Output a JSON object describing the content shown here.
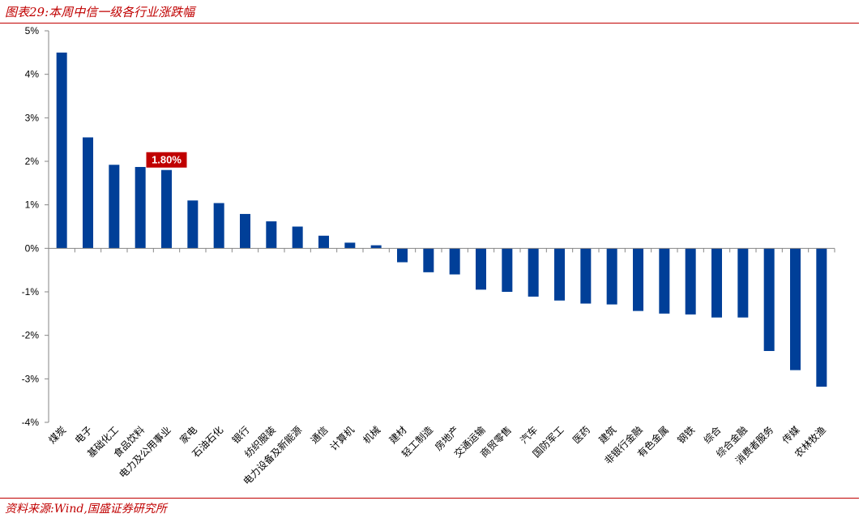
{
  "title": "图表29:本周中信一级各行业涨跌幅",
  "source": "资料来源:Wind,国盛证券研究所",
  "colors": {
    "bar": "#003f98",
    "accent": "#c00000",
    "axis": "#868686"
  },
  "chart_data": {
    "type": "bar",
    "title": "",
    "xlabel": "",
    "ylabel": "",
    "ylim": [
      -4,
      5
    ],
    "yticks": [
      5,
      4,
      3,
      2,
      1,
      0,
      -1,
      -2,
      -3,
      -4
    ],
    "ytick_labels": [
      "5%",
      "4%",
      "3%",
      "2%",
      "1%",
      "0%",
      "-1%",
      "-2%",
      "-3%",
      "-4%"
    ],
    "grid": false,
    "legend": "none",
    "categories": [
      "煤炭",
      "电子",
      "基础化工",
      "食品饮料",
      "电力及公用事业",
      "家电",
      "石油石化",
      "银行",
      "纺织服装",
      "电力设备及新能源",
      "通信",
      "计算机",
      "机械",
      "建材",
      "轻工制造",
      "房地产",
      "交通运输",
      "商贸零售",
      "汽车",
      "国防军工",
      "医药",
      "建筑",
      "非银行金融",
      "有色金属",
      "钢铁",
      "综合",
      "综合金融",
      "消费者服务",
      "传媒",
      "农林牧渔"
    ],
    "values": [
      4.5,
      2.55,
      1.92,
      1.87,
      1.8,
      1.1,
      1.04,
      0.79,
      0.62,
      0.5,
      0.29,
      0.13,
      0.07,
      -0.32,
      -0.55,
      -0.6,
      -0.95,
      -1.0,
      -1.11,
      -1.2,
      -1.27,
      -1.29,
      -1.44,
      -1.5,
      -1.52,
      -1.59,
      -1.59,
      -2.36,
      -2.8,
      -3.18
    ],
    "annotation": {
      "category": "电力及公用事业",
      "text": "1.80%"
    }
  }
}
